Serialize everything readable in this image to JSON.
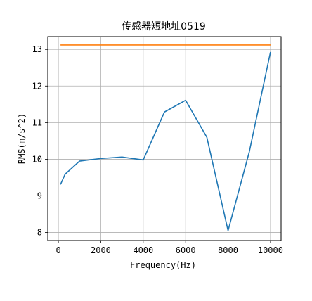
{
  "chart_data": {
    "type": "line",
    "title": "传感器短地址0519",
    "xlabel": "Frequency(Hz)",
    "ylabel": "RMS(m/s^2)",
    "xlim": [
      -500,
      10500
    ],
    "ylim": [
      7.78,
      13.35
    ],
    "xticks": [
      0,
      2000,
      4000,
      6000,
      8000,
      10000
    ],
    "yticks": [
      8,
      9,
      10,
      11,
      12,
      13
    ],
    "grid": true,
    "series": [
      {
        "color": "#1f77b4",
        "x": [
          100,
          315,
          1000,
          2000,
          3000,
          4000,
          5000,
          6000,
          7000,
          8000,
          9000,
          10000
        ],
        "y": [
          9.31,
          9.59,
          9.95,
          10.02,
          10.06,
          9.98,
          11.29,
          11.61,
          10.6,
          8.05,
          10.2,
          12.93
        ]
      },
      {
        "color": "#ff7f0e",
        "x": [
          100,
          10000
        ],
        "y": [
          13.12,
          13.12
        ]
      }
    ]
  }
}
